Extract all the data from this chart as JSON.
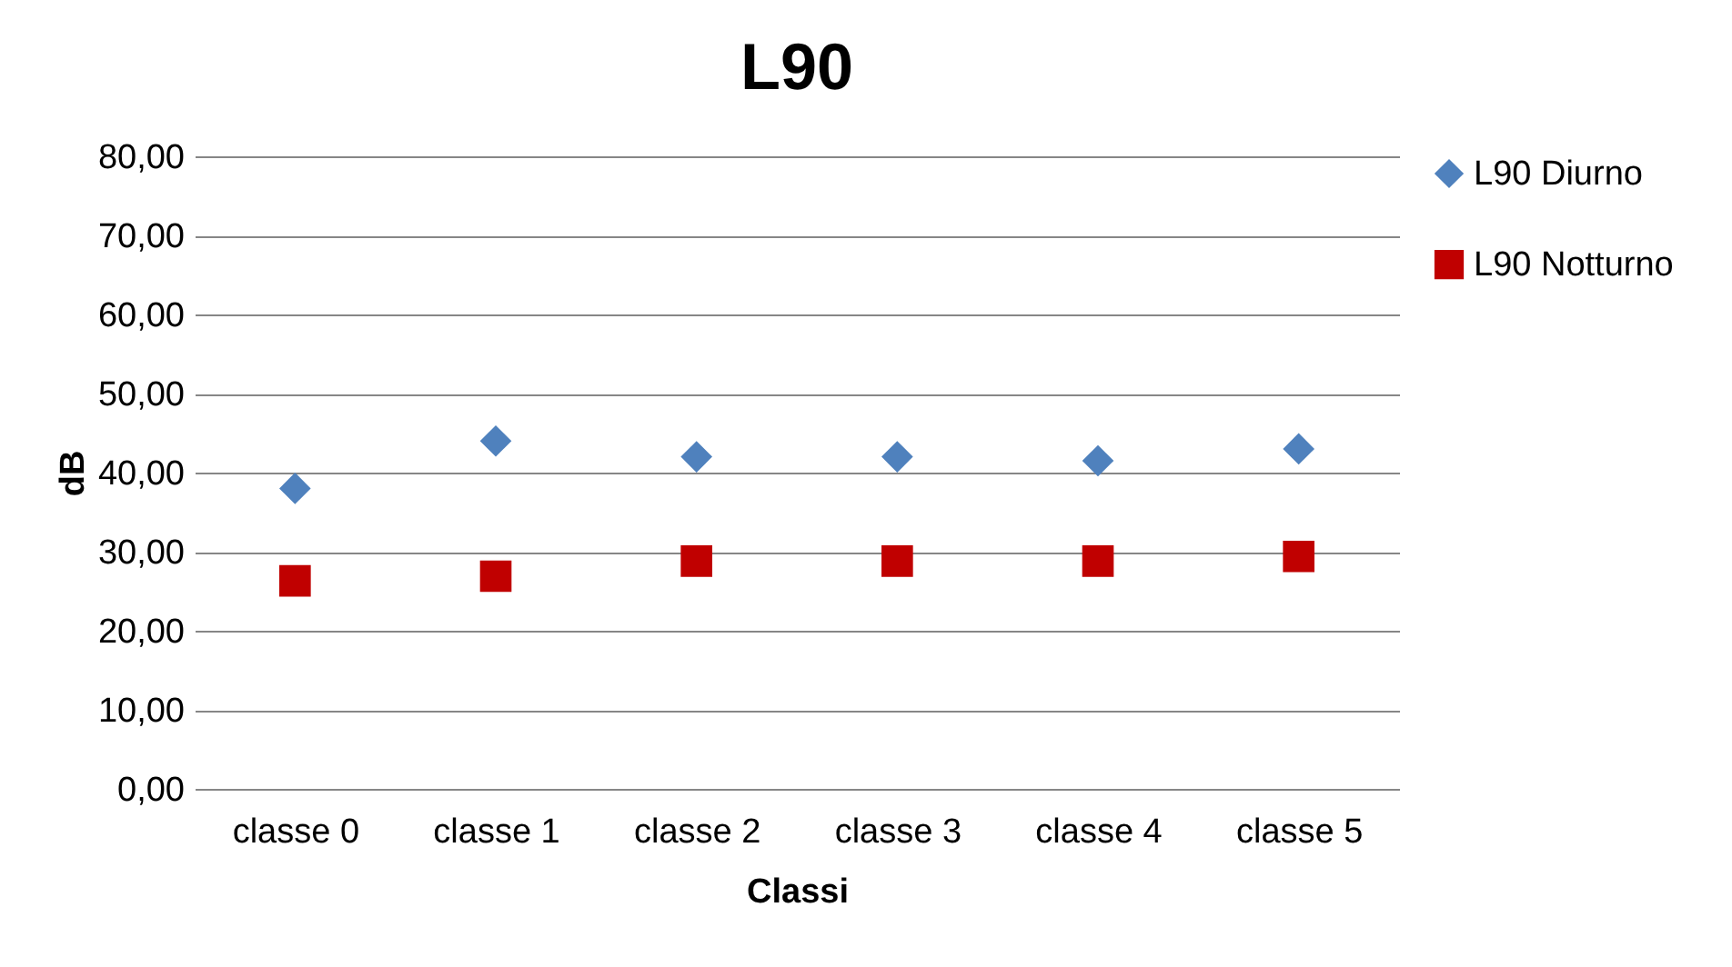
{
  "chart_data": {
    "type": "scatter",
    "title": "L90",
    "xlabel": "Classi",
    "ylabel": "dB",
    "categories": [
      "classe 0",
      "classe 1",
      "classe 2",
      "classe 3",
      "classe 4",
      "classe 5"
    ],
    "series": [
      {
        "name": "L90 Diurno",
        "color": "#4f81bd",
        "marker": "diamond",
        "values": [
          38,
          44,
          42,
          42,
          41.5,
          43
        ]
      },
      {
        "name": "L90 Notturno",
        "color": "#c00000",
        "marker": "square",
        "values": [
          26.3,
          26.9,
          28.8,
          28.8,
          28.8,
          29.4
        ]
      }
    ],
    "ylim": [
      0,
      80
    ],
    "yticks": [
      {
        "value": 0,
        "label": "0,00"
      },
      {
        "value": 10,
        "label": "10,00"
      },
      {
        "value": 20,
        "label": "20,00"
      },
      {
        "value": 30,
        "label": "30,00"
      },
      {
        "value": 40,
        "label": "40,00"
      },
      {
        "value": 50,
        "label": "50,00"
      },
      {
        "value": 60,
        "label": "60,00"
      },
      {
        "value": 70,
        "label": "70,00"
      },
      {
        "value": 80,
        "label": "80,00"
      }
    ],
    "grid": "y",
    "legend": "right"
  }
}
